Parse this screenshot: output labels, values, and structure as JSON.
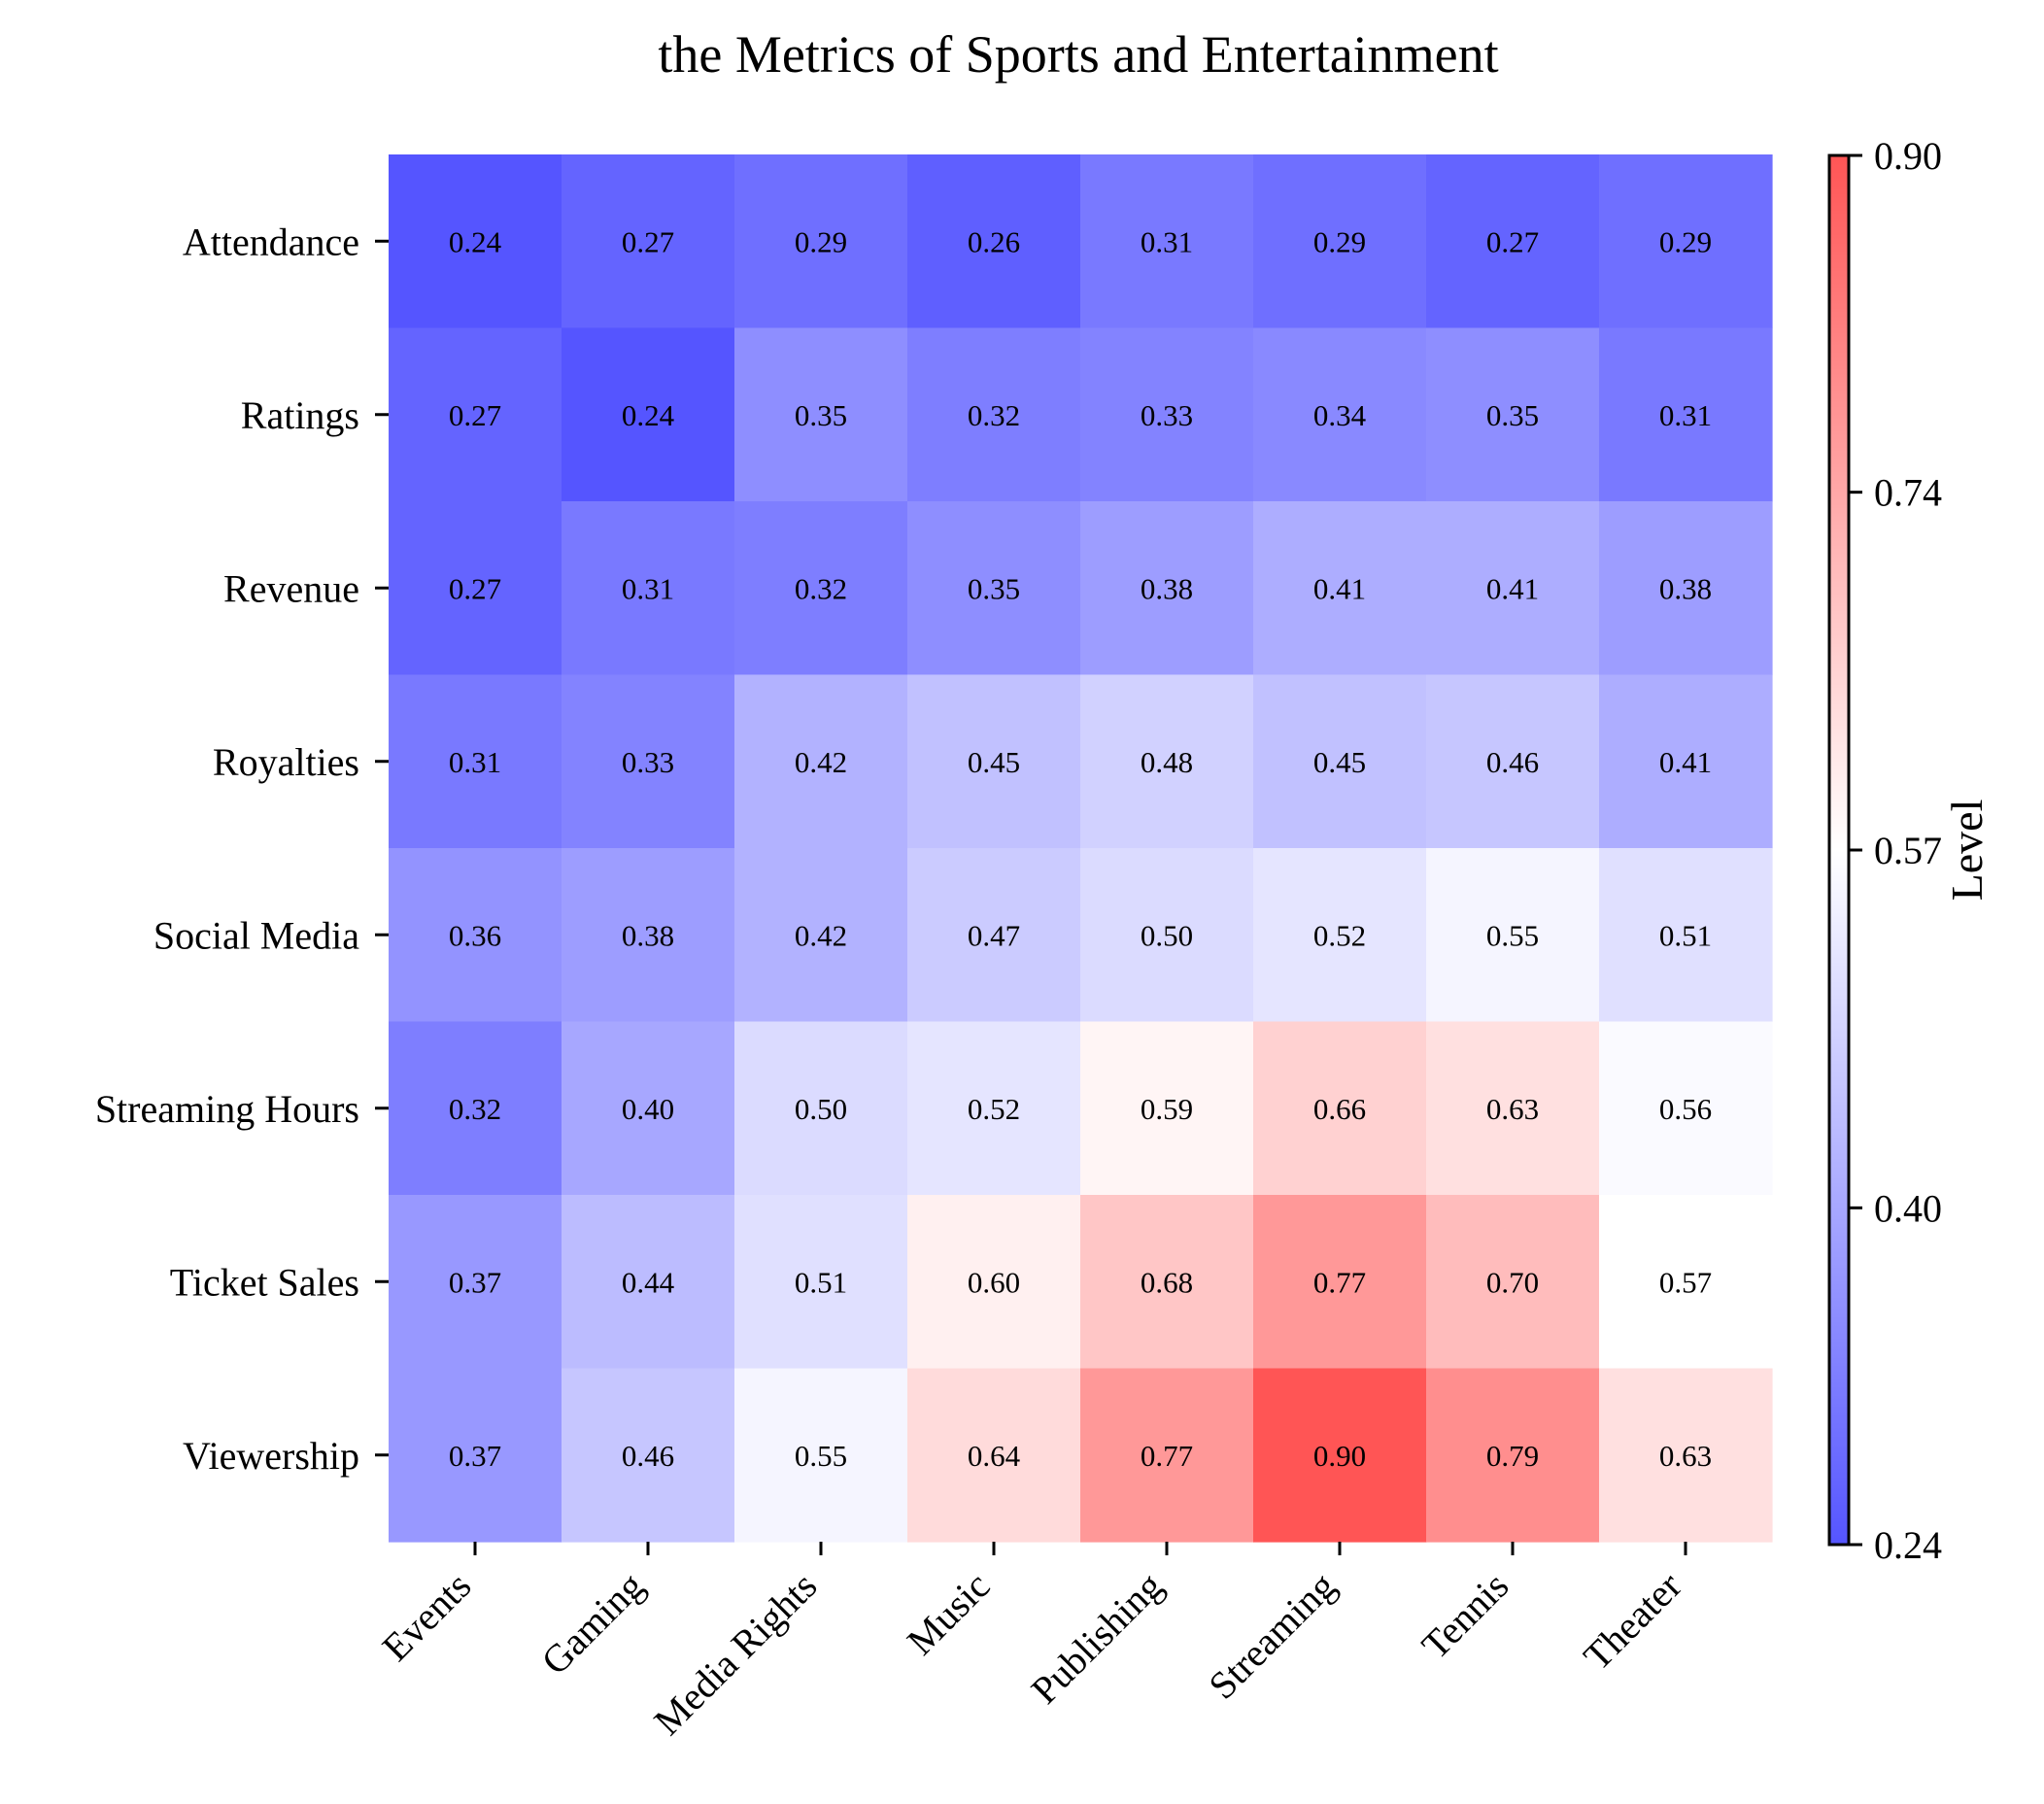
{
  "chart_data": {
    "type": "heatmap",
    "title": "the Metrics of Sports and Entertainment",
    "rows": [
      "Attendance",
      "Ratings",
      "Revenue",
      "Royalties",
      "Social Media",
      "Streaming Hours",
      "Ticket Sales",
      "Viewership"
    ],
    "columns": [
      "Events",
      "Gaming",
      "Media Rights",
      "Music",
      "Publishing",
      "Streaming",
      "Tennis",
      "Theater"
    ],
    "values": [
      [
        0.24,
        0.27,
        0.29,
        0.26,
        0.31,
        0.29,
        0.27,
        0.29
      ],
      [
        0.27,
        0.24,
        0.35,
        0.32,
        0.33,
        0.34,
        0.35,
        0.31
      ],
      [
        0.27,
        0.31,
        0.32,
        0.35,
        0.38,
        0.41,
        0.41,
        0.38
      ],
      [
        0.31,
        0.33,
        0.42,
        0.45,
        0.48,
        0.45,
        0.46,
        0.41
      ],
      [
        0.36,
        0.38,
        0.42,
        0.47,
        0.5,
        0.52,
        0.55,
        0.51
      ],
      [
        0.32,
        0.4,
        0.5,
        0.52,
        0.59,
        0.66,
        0.63,
        0.56
      ],
      [
        0.37,
        0.44,
        0.51,
        0.6,
        0.68,
        0.77,
        0.7,
        0.57
      ],
      [
        0.37,
        0.46,
        0.55,
        0.64,
        0.77,
        0.9,
        0.79,
        0.63
      ]
    ],
    "value_labels": [
      [
        "0.24",
        "0.27",
        "0.29",
        "0.26",
        "0.31",
        "0.29",
        "0.27",
        "0.29"
      ],
      [
        "0.27",
        "0.24",
        "0.35",
        "0.32",
        "0.33",
        "0.34",
        "0.35",
        "0.31"
      ],
      [
        "0.27",
        "0.31",
        "0.32",
        "0.35",
        "0.38",
        "0.41",
        "0.41",
        "0.38"
      ],
      [
        "0.31",
        "0.33",
        "0.42",
        "0.45",
        "0.48",
        "0.45",
        "0.46",
        "0.41"
      ],
      [
        "0.36",
        "0.38",
        "0.42",
        "0.47",
        "0.50",
        "0.52",
        "0.55",
        "0.51"
      ],
      [
        "0.32",
        "0.40",
        "0.50",
        "0.52",
        "0.59",
        "0.66",
        "0.63",
        "0.56"
      ],
      [
        "0.37",
        "0.44",
        "0.51",
        "0.60",
        "0.68",
        "0.77",
        "0.70",
        "0.57"
      ],
      [
        "0.37",
        "0.46",
        "0.55",
        "0.64",
        "0.77",
        "0.90",
        "0.79",
        "0.63"
      ]
    ],
    "colorbar": {
      "label": "Level",
      "range": [
        0.24,
        0.9
      ],
      "ticks": [
        0.24,
        0.4,
        0.57,
        0.74,
        0.9
      ],
      "tick_labels": [
        "0.24",
        "0.40",
        "0.57",
        "0.74",
        "0.90"
      ],
      "colors": [
        "#5555ff",
        "#ffffff",
        "#ff5555"
      ]
    },
    "grid": false
  }
}
